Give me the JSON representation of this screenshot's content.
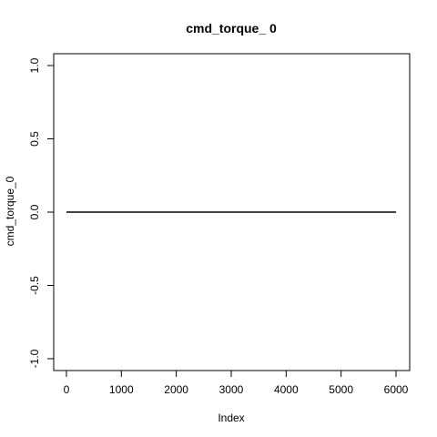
{
  "chart_data": {
    "type": "line",
    "title": "cmd_torque_ 0",
    "xlabel": "Index",
    "ylabel": "cmd_torque_0",
    "x": [
      1,
      6000
    ],
    "y": [
      0,
      0
    ],
    "xlim": [
      1,
      6000
    ],
    "ylim": [
      -1.0,
      1.0
    ],
    "x_ticks": [
      0,
      1000,
      2000,
      3000,
      4000,
      5000,
      6000
    ],
    "x_tick_labels": [
      "0",
      "1000",
      "2000",
      "3000",
      "4000",
      "5000",
      "6000"
    ],
    "y_ticks": [
      -1.0,
      -0.5,
      0.0,
      0.5,
      1.0
    ],
    "y_tick_labels": [
      "-1.0",
      "-0.5",
      "0.0",
      "0.5",
      "1.0"
    ],
    "grid": false,
    "legend": "none",
    "line_color": "#000000",
    "axis_color": "#000000",
    "background_color": "#ffffff"
  }
}
